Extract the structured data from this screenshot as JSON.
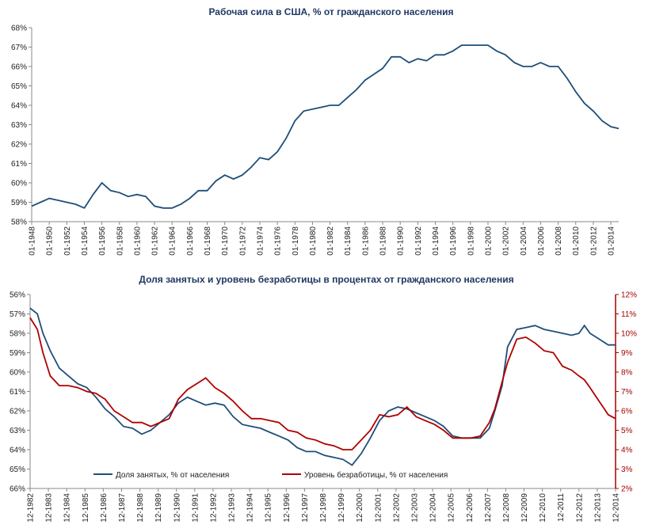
{
  "chart_data": [
    {
      "type": "line",
      "title": "Рабочая сила в США, % от гражданского населения",
      "y_tick_labels": [
        "58%",
        "59%",
        "60%",
        "61%",
        "62%",
        "63%",
        "64%",
        "65%",
        "66%",
        "67%",
        "68%"
      ],
      "ylim": [
        58,
        68
      ],
      "x_tick_labels": [
        "01-1948",
        "01-1950",
        "01-1952",
        "01-1954",
        "01-1956",
        "01-1958",
        "01-1960",
        "01-1962",
        "01-1964",
        "01-1966",
        "01-1968",
        "01-1970",
        "01-1972",
        "01-1974",
        "01-1976",
        "01-1978",
        "01-1980",
        "01-1982",
        "01-1984",
        "01-1986",
        "01-1988",
        "01-1990",
        "01-1992",
        "01-1994",
        "01-1996",
        "01-1998",
        "01-2000",
        "01-2002",
        "01-2004",
        "01-2006",
        "01-2008",
        "01-2010",
        "01-2012",
        "01-2014"
      ],
      "xlim": [
        1948,
        2014.9
      ],
      "series": [
        {
          "color": "#1f4e79",
          "x": [
            1948,
            1949,
            1950,
            1951,
            1952,
            1953,
            1954,
            1955,
            1956,
            1957,
            1958,
            1959,
            1960,
            1961,
            1962,
            1963,
            1964,
            1965,
            1966,
            1967,
            1968,
            1969,
            1970,
            1971,
            1972,
            1973,
            1974,
            1975,
            1976,
            1977,
            1978,
            1979,
            1980,
            1981,
            1982,
            1983,
            1984,
            1985,
            1986,
            1987,
            1988,
            1989,
            1990,
            1991,
            1992,
            1993,
            1994,
            1995,
            1996,
            1997,
            1998,
            1999,
            2000,
            2001,
            2002,
            2003,
            2004,
            2005,
            2006,
            2007,
            2008,
            2009,
            2010,
            2011,
            2012,
            2013,
            2014,
            2014.9
          ],
          "y": [
            58.8,
            59.0,
            59.2,
            59.1,
            59.0,
            58.9,
            58.7,
            59.4,
            60.0,
            59.6,
            59.5,
            59.3,
            59.4,
            59.3,
            58.8,
            58.7,
            58.7,
            58.9,
            59.2,
            59.6,
            59.6,
            60.1,
            60.4,
            60.2,
            60.4,
            60.8,
            61.3,
            61.2,
            61.6,
            62.3,
            63.2,
            63.7,
            63.8,
            63.9,
            64.0,
            64.0,
            64.4,
            64.8,
            65.3,
            65.6,
            65.9,
            66.5,
            66.5,
            66.2,
            66.4,
            66.3,
            66.6,
            66.6,
            66.8,
            67.1,
            67.1,
            67.1,
            67.1,
            66.8,
            66.6,
            66.2,
            66.0,
            66.0,
            66.2,
            66.0,
            66.0,
            65.4,
            64.7,
            64.1,
            63.7,
            63.2,
            62.9,
            62.8
          ]
        }
      ]
    },
    {
      "type": "line",
      "title": "Доля занятых и уровень безработицы  в процентах от гражданского населения",
      "y_left_tick_labels": [
        "56%",
        "57%",
        "58%",
        "59%",
        "60%",
        "61%",
        "62%",
        "63%",
        "64%",
        "65%",
        "66%"
      ],
      "y_left_lim": [
        66,
        56
      ],
      "y_left_inverted": true,
      "y_right_tick_labels": [
        "2%",
        "3%",
        "4%",
        "5%",
        "6%",
        "7%",
        "8%",
        "9%",
        "10%",
        "11%",
        "12%"
      ],
      "y_right_lim": [
        2,
        12
      ],
      "x_tick_labels": [
        "12-1982",
        "12-1983",
        "12-1984",
        "12-1985",
        "12-1986",
        "12-1987",
        "12-1988",
        "12-1989",
        "12-1990",
        "12-1991",
        "12-1992",
        "12-1993",
        "12-1994",
        "12-1995",
        "12-1996",
        "12-1997",
        "12-1998",
        "12-1999",
        "12-2000",
        "12-2001",
        "12-2002",
        "12-2003",
        "12-2004",
        "12-2005",
        "12-2006",
        "12-2007",
        "12-2008",
        "12-2009",
        "12-2010",
        "12-2011",
        "12-2012",
        "12-2013",
        "12-2014"
      ],
      "xlim": [
        1982.9,
        2014.9
      ],
      "legend_position": "bottom-center",
      "series": [
        {
          "name": "Доля занятых,  % от населения",
          "axis": "left",
          "color": "#1f4e79",
          "x": [
            1982.9,
            1983.3,
            1983.6,
            1984.0,
            1984.5,
            1985.0,
            1985.5,
            1986.0,
            1986.5,
            1987.0,
            1987.5,
            1988.0,
            1988.5,
            1989.0,
            1989.5,
            1990.0,
            1990.5,
            1991.0,
            1991.5,
            1992.0,
            1992.5,
            1993.0,
            1993.5,
            1994.0,
            1994.5,
            1995.0,
            1995.5,
            1996.0,
            1996.5,
            1997.0,
            1997.5,
            1998.0,
            1998.5,
            1999.0,
            1999.5,
            2000.0,
            2000.5,
            2001.0,
            2001.5,
            2002.0,
            2002.5,
            2003.0,
            2003.5,
            2004.0,
            2004.5,
            2005.0,
            2005.5,
            2006.0,
            2006.5,
            2007.0,
            2007.5,
            2008.0,
            2008.3,
            2008.7,
            2009.0,
            2009.5,
            2010.0,
            2010.5,
            2011.0,
            2011.5,
            2012.0,
            2012.5,
            2012.9,
            2013.2,
            2013.5,
            2014.0,
            2014.5,
            2014.9
          ],
          "y": [
            56.7,
            57.0,
            58.0,
            58.9,
            59.8,
            60.2,
            60.6,
            60.8,
            61.3,
            61.9,
            62.3,
            62.8,
            62.9,
            63.2,
            63.0,
            62.6,
            62.2,
            61.6,
            61.3,
            61.5,
            61.7,
            61.6,
            61.7,
            62.3,
            62.7,
            62.8,
            62.9,
            63.1,
            63.3,
            63.5,
            63.9,
            64.1,
            64.1,
            64.3,
            64.4,
            64.5,
            64.8,
            64.2,
            63.4,
            62.5,
            62.0,
            61.8,
            61.9,
            62.1,
            62.3,
            62.5,
            62.8,
            63.3,
            63.4,
            63.4,
            63.4,
            62.9,
            62.0,
            60.7,
            58.7,
            57.8,
            57.7,
            57.6,
            57.8,
            57.9,
            58.0,
            58.1,
            58.0,
            57.6,
            58.0,
            58.3,
            58.6,
            58.6
          ]
        },
        {
          "name": "Уровень безработицы,  % от населения",
          "axis": "right",
          "color": "#b00000",
          "x": [
            1982.9,
            1983.3,
            1983.6,
            1984.0,
            1984.5,
            1985.0,
            1985.5,
            1986.0,
            1986.5,
            1987.0,
            1987.5,
            1988.0,
            1988.5,
            1989.0,
            1989.5,
            1990.0,
            1990.5,
            1991.0,
            1991.5,
            1992.0,
            1992.5,
            1993.0,
            1993.5,
            1994.0,
            1994.5,
            1995.0,
            1995.5,
            1996.0,
            1996.5,
            1997.0,
            1997.5,
            1998.0,
            1998.5,
            1999.0,
            1999.5,
            2000.0,
            2000.5,
            2001.0,
            2001.5,
            2002.0,
            2002.5,
            2003.0,
            2003.5,
            2004.0,
            2004.5,
            2005.0,
            2005.5,
            2006.0,
            2006.5,
            2007.0,
            2007.5,
            2008.0,
            2008.3,
            2008.7,
            2009.0,
            2009.5,
            2010.0,
            2010.5,
            2011.0,
            2011.5,
            2012.0,
            2012.5,
            2012.9,
            2013.2,
            2013.5,
            2014.0,
            2014.5,
            2014.9
          ],
          "y": [
            10.8,
            10.2,
            9.0,
            7.8,
            7.3,
            7.3,
            7.2,
            7.0,
            6.9,
            6.6,
            6.0,
            5.7,
            5.4,
            5.4,
            5.2,
            5.4,
            5.6,
            6.6,
            7.1,
            7.4,
            7.7,
            7.2,
            6.9,
            6.5,
            6.0,
            5.6,
            5.6,
            5.5,
            5.4,
            5.0,
            4.9,
            4.6,
            4.5,
            4.3,
            4.2,
            4.0,
            4.0,
            4.5,
            5.0,
            5.8,
            5.7,
            5.8,
            6.2,
            5.7,
            5.5,
            5.3,
            5.0,
            4.6,
            4.6,
            4.6,
            4.7,
            5.4,
            6.1,
            7.5,
            8.5,
            9.7,
            9.8,
            9.5,
            9.1,
            9.0,
            8.3,
            8.1,
            7.8,
            7.6,
            7.2,
            6.5,
            5.8,
            5.6
          ]
        }
      ]
    }
  ]
}
